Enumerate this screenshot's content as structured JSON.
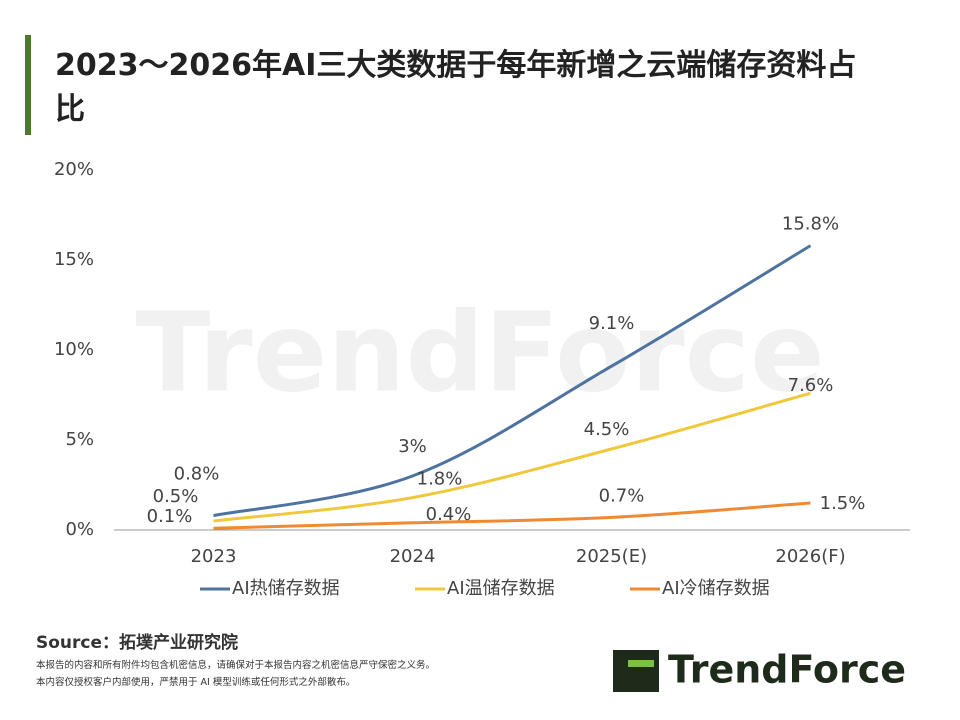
{
  "chart_data": {
    "type": "line",
    "title": "2023～2026年AI三大类数据于每年新增之云端储存资料占比",
    "categories": [
      "2023",
      "2024",
      "2025(E)",
      "2026(F)"
    ],
    "series": [
      {
        "name": "AI热储存数据",
        "color": "#4e73a0",
        "values": [
          0.8,
          3,
          9.1,
          15.8
        ],
        "value_labels": [
          "0.8%",
          "3%",
          "9.1%",
          "15.8%"
        ]
      },
      {
        "name": "AI温储存数据",
        "color": "#f0c83c",
        "values": [
          0.5,
          1.8,
          4.5,
          7.6
        ],
        "value_labels": [
          "0.5%",
          "1.8%",
          "4.5%",
          "7.6%"
        ]
      },
      {
        "name": "AI冷储存数据",
        "color": "#ee8a33",
        "values": [
          0.1,
          0.4,
          0.7,
          1.5
        ],
        "value_labels": [
          "0.1%",
          "0.4%",
          "0.7%",
          "1.5%"
        ]
      }
    ],
    "ylim": [
      0,
      20
    ],
    "yticks": [
      {
        "value": 0,
        "label": "0%"
      },
      {
        "value": 5,
        "label": "5%"
      },
      {
        "value": 10,
        "label": "10%"
      },
      {
        "value": 15,
        "label": "15%"
      },
      {
        "value": 20,
        "label": "20%"
      }
    ],
    "grid": false,
    "legend": "bottom"
  },
  "source": "Source：拓墣产业研究院",
  "notes": [
    "本报告的内容和所有附件均包含机密信息，请确保对于本报告内容之机密信息严守保密之义务。",
    "本内容仅授权客户内部使用，严禁用于 AI 模型训练或任何形式之外部散布。"
  ],
  "logo": "TrendForce"
}
